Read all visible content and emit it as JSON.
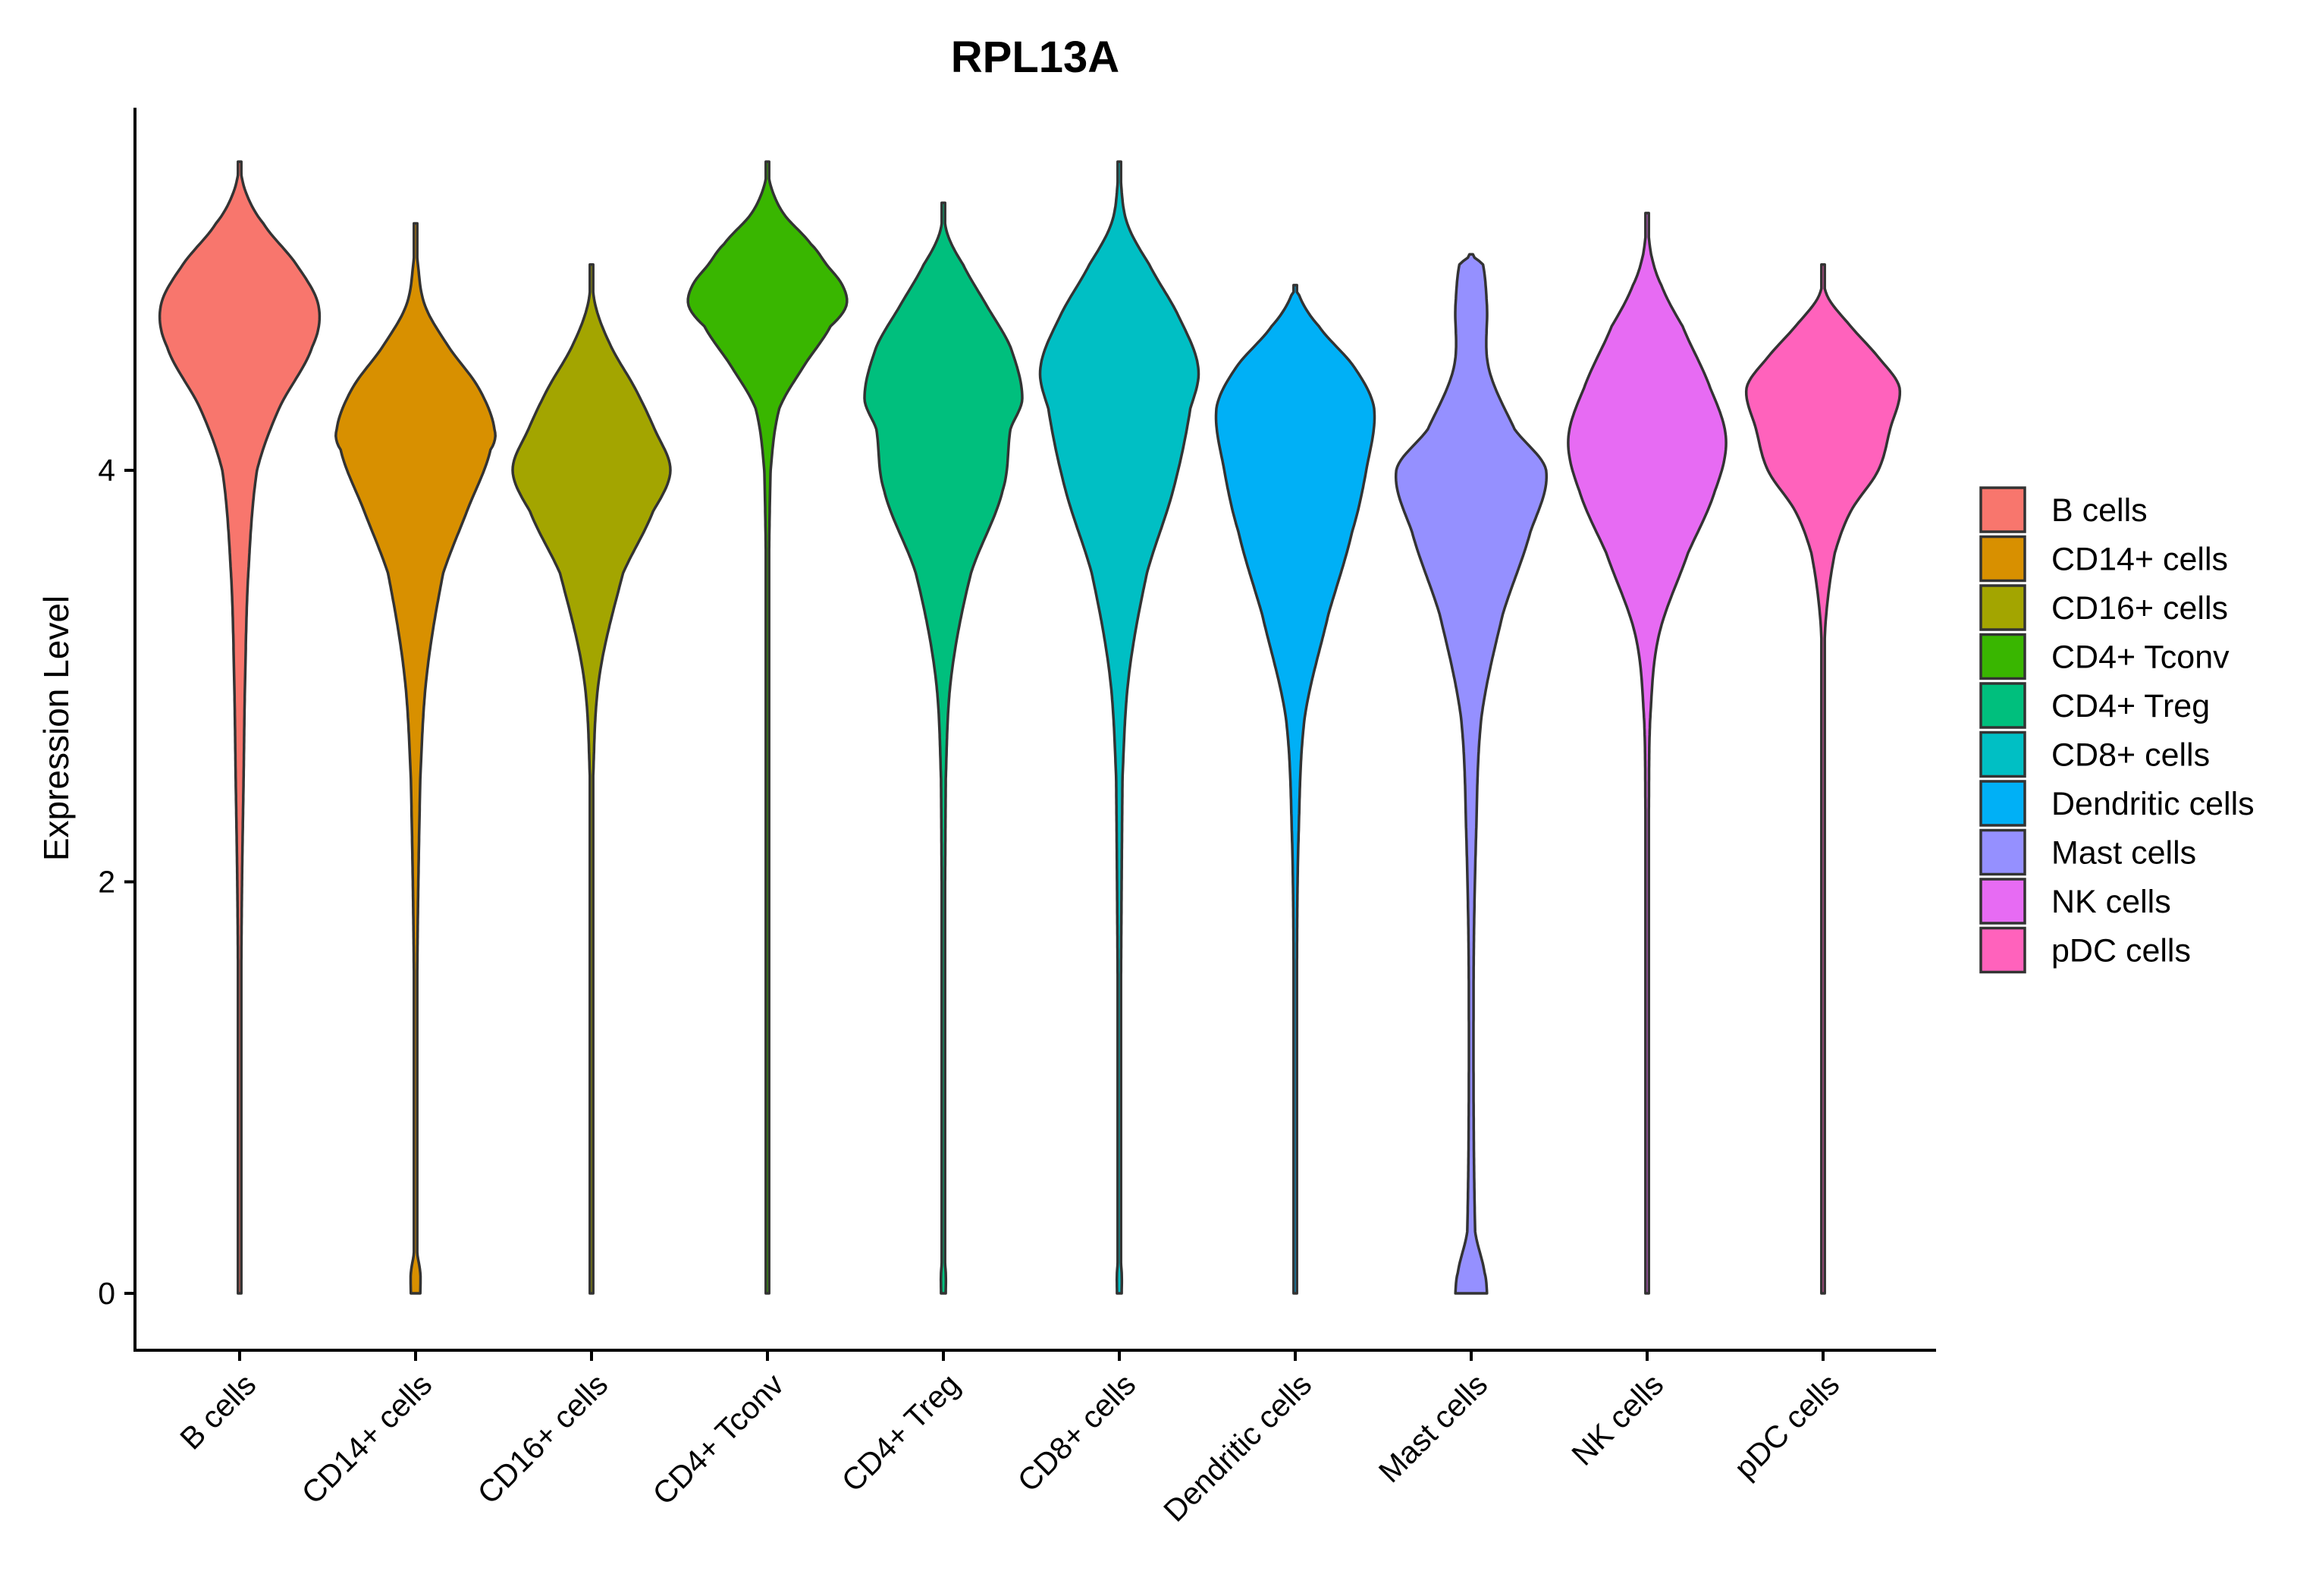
{
  "chart_data": {
    "type": "violin",
    "title": "RPL13A",
    "xlabel": "",
    "ylabel": "Expression Level",
    "ylim": [
      -0.28,
      5.8
    ],
    "yticks": [
      0,
      2,
      4
    ],
    "legend_position": "right",
    "grid": false,
    "categories": [
      "B cells",
      "CD14+ cells",
      "CD16+ cells",
      "CD4+ Tconv",
      "CD4+ Treg",
      "CD8+ cells",
      "Dendritic cells",
      "Mast cells",
      "NK cells",
      "pDC cells"
    ],
    "colors": [
      "#F8766D",
      "#D89000",
      "#A3A500",
      "#39B600",
      "#00BF7D",
      "#00BFC4",
      "#00B0F6",
      "#9590FF",
      "#E76BF3",
      "#FF62BC"
    ],
    "series": [
      {
        "name": "B cells",
        "min": 0,
        "max": 5.5,
        "density": [
          [
            0,
            0.02
          ],
          [
            1.5,
            0.02
          ],
          [
            2.0,
            0.03
          ],
          [
            2.5,
            0.05
          ],
          [
            3.0,
            0.07
          ],
          [
            3.5,
            0.11
          ],
          [
            4.0,
            0.22
          ],
          [
            4.3,
            0.5
          ],
          [
            4.6,
            0.92
          ],
          [
            4.8,
            1.0
          ],
          [
            5.0,
            0.72
          ],
          [
            5.2,
            0.3
          ],
          [
            5.35,
            0.08
          ],
          [
            5.5,
            0.0
          ]
        ]
      },
      {
        "name": "CD14+ cells",
        "min": 0,
        "max": 5.2,
        "density": [
          [
            0,
            0.06
          ],
          [
            0.1,
            0.06
          ],
          [
            0.2,
            0.02
          ],
          [
            1.5,
            0.02
          ],
          [
            2.5,
            0.06
          ],
          [
            3.0,
            0.14
          ],
          [
            3.5,
            0.35
          ],
          [
            3.8,
            0.65
          ],
          [
            4.1,
            0.95
          ],
          [
            4.2,
            1.0
          ],
          [
            4.4,
            0.8
          ],
          [
            4.6,
            0.42
          ],
          [
            4.8,
            0.12
          ],
          [
            5.0,
            0.03
          ],
          [
            5.2,
            0.0
          ]
        ]
      },
      {
        "name": "CD16+ cells",
        "min": 0,
        "max": 5.0,
        "density": [
          [
            0,
            0.02
          ],
          [
            0.1,
            0.02
          ],
          [
            0.2,
            0.0
          ],
          [
            2.5,
            0.02
          ],
          [
            3.0,
            0.1
          ],
          [
            3.5,
            0.4
          ],
          [
            3.8,
            0.78
          ],
          [
            4.0,
            1.0
          ],
          [
            4.2,
            0.8
          ],
          [
            4.4,
            0.55
          ],
          [
            4.6,
            0.25
          ],
          [
            4.8,
            0.05
          ],
          [
            5.0,
            0.0
          ]
        ]
      },
      {
        "name": "CD4+ Tconv",
        "min": 0,
        "max": 5.5,
        "density": [
          [
            0,
            0.01
          ],
          [
            3.0,
            0.01
          ],
          [
            4.0,
            0.04
          ],
          [
            4.3,
            0.15
          ],
          [
            4.5,
            0.45
          ],
          [
            4.7,
            0.8
          ],
          [
            4.8,
            1.0
          ],
          [
            4.9,
            0.95
          ],
          [
            5.0,
            0.75
          ],
          [
            5.1,
            0.55
          ],
          [
            5.25,
            0.2
          ],
          [
            5.4,
            0.03
          ],
          [
            5.5,
            0.0
          ]
        ]
      },
      {
        "name": "CD4+ Treg",
        "min": 0,
        "max": 5.3,
        "density": [
          [
            0,
            0.03
          ],
          [
            0.1,
            0.03
          ],
          [
            0.2,
            0.01
          ],
          [
            2.5,
            0.03
          ],
          [
            3.0,
            0.1
          ],
          [
            3.5,
            0.35
          ],
          [
            3.9,
            0.75
          ],
          [
            4.2,
            0.85
          ],
          [
            4.35,
            1.0
          ],
          [
            4.6,
            0.85
          ],
          [
            4.8,
            0.55
          ],
          [
            5.0,
            0.25
          ],
          [
            5.15,
            0.05
          ],
          [
            5.3,
            0.0
          ]
        ]
      },
      {
        "name": "CD8+ cells",
        "min": 0,
        "max": 5.5,
        "density": [
          [
            0,
            0.03
          ],
          [
            0.1,
            0.03
          ],
          [
            0.2,
            0.01
          ],
          [
            2.5,
            0.04
          ],
          [
            3.0,
            0.12
          ],
          [
            3.5,
            0.35
          ],
          [
            3.9,
            0.68
          ],
          [
            4.3,
            0.9
          ],
          [
            4.5,
            1.0
          ],
          [
            4.75,
            0.75
          ],
          [
            5.0,
            0.38
          ],
          [
            5.2,
            0.1
          ],
          [
            5.4,
            0.02
          ],
          [
            5.5,
            0.0
          ]
        ]
      },
      {
        "name": "Dendritic cells",
        "min": 0,
        "max": 4.9,
        "density": [
          [
            0,
            0.02
          ],
          [
            1.5,
            0.02
          ],
          [
            2.2,
            0.04
          ],
          [
            2.8,
            0.12
          ],
          [
            3.3,
            0.42
          ],
          [
            3.7,
            0.72
          ],
          [
            4.0,
            0.9
          ],
          [
            4.3,
            1.0
          ],
          [
            4.5,
            0.75
          ],
          [
            4.7,
            0.3
          ],
          [
            4.85,
            0.05
          ],
          [
            4.9,
            0.0
          ]
        ]
      },
      {
        "name": "Mast cells",
        "min": 0,
        "max": 5.05,
        "density": [
          [
            0,
            0.2
          ],
          [
            0.1,
            0.17
          ],
          [
            0.3,
            0.05
          ],
          [
            1.5,
            0.03
          ],
          [
            2.2,
            0.06
          ],
          [
            2.8,
            0.13
          ],
          [
            3.3,
            0.4
          ],
          [
            3.7,
            0.75
          ],
          [
            4.0,
            0.95
          ],
          [
            4.2,
            0.55
          ],
          [
            4.5,
            0.22
          ],
          [
            4.8,
            0.2
          ],
          [
            5.0,
            0.15
          ],
          [
            5.05,
            0.0
          ]
        ]
      },
      {
        "name": "NK cells",
        "min": 0,
        "max": 5.25,
        "density": [
          [
            0,
            0.02
          ],
          [
            0.1,
            0.02
          ],
          [
            0.2,
            0.0
          ],
          [
            2.3,
            0.02
          ],
          [
            2.8,
            0.04
          ],
          [
            3.2,
            0.15
          ],
          [
            3.6,
            0.52
          ],
          [
            3.9,
            0.86
          ],
          [
            4.15,
            1.0
          ],
          [
            4.4,
            0.8
          ],
          [
            4.7,
            0.45
          ],
          [
            4.9,
            0.18
          ],
          [
            5.05,
            0.05
          ],
          [
            5.25,
            0.0
          ]
        ]
      },
      {
        "name": "pDC cells",
        "min": 0,
        "max": 5.0,
        "density": [
          [
            0,
            0.01
          ],
          [
            3.0,
            0.01
          ],
          [
            3.3,
            0.04
          ],
          [
            3.6,
            0.15
          ],
          [
            3.8,
            0.35
          ],
          [
            4.0,
            0.7
          ],
          [
            4.2,
            0.85
          ],
          [
            4.4,
            0.97
          ],
          [
            4.55,
            0.7
          ],
          [
            4.7,
            0.35
          ],
          [
            4.85,
            0.05
          ],
          [
            5.0,
            0.0
          ]
        ]
      }
    ]
  }
}
